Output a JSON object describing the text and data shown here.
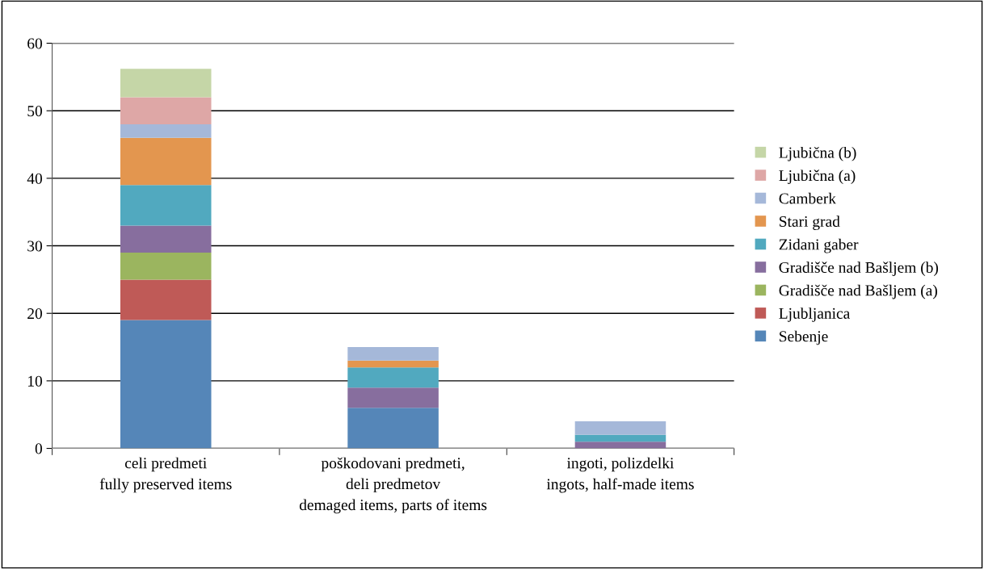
{
  "chart_data": {
    "type": "bar",
    "stacked": true,
    "categories": [
      "celi predmeti\nfully preserved items",
      "poškodovani predmeti,\ndeli predmetov\ndemaged items, parts of items",
      "ingoti, polizdelki\ningots, half-made items"
    ],
    "series": [
      {
        "name": "Sebenje",
        "color": "#5586b8",
        "values": [
          19,
          6,
          0
        ]
      },
      {
        "name": "Ljubljanica",
        "color": "#bf5a57",
        "values": [
          6,
          0,
          0
        ]
      },
      {
        "name": "Gradišče nad Bašljem (a)",
        "color": "#9bb55f",
        "values": [
          4,
          0,
          0
        ]
      },
      {
        "name": "Gradišče nad Bašljem (b)",
        "color": "#876e9e",
        "values": [
          4,
          3,
          1
        ]
      },
      {
        "name": "Zidani gaber",
        "color": "#51a9bf",
        "values": [
          6,
          3,
          1
        ]
      },
      {
        "name": "Stari grad",
        "color": "#e3964f",
        "values": [
          7,
          1,
          0
        ]
      },
      {
        "name": "Camberk",
        "color": "#a5b8d9",
        "values": [
          2,
          2,
          2
        ]
      },
      {
        "name": "Ljubična (a)",
        "color": "#dea7a6",
        "values": [
          4,
          0,
          0
        ]
      },
      {
        "name": "Ljubična (b)",
        "color": "#c5d6a7",
        "values": [
          4.2,
          0,
          0
        ]
      }
    ],
    "ylim": [
      0,
      60
    ],
    "yticks": [
      0,
      10,
      20,
      30,
      40,
      50,
      60
    ],
    "grid": "y",
    "legend": "right"
  }
}
